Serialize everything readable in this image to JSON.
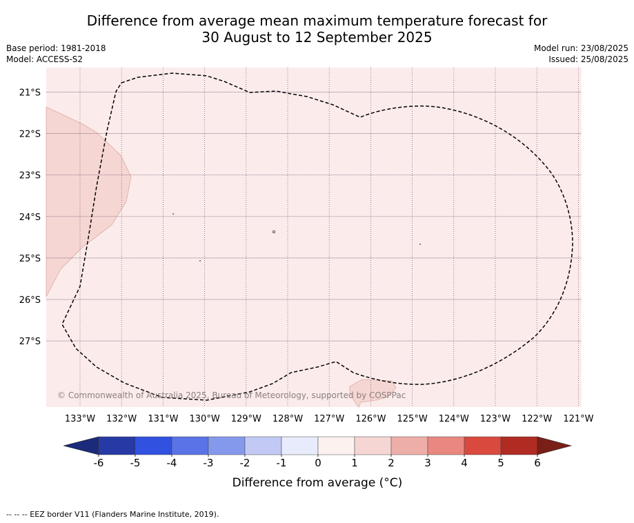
{
  "title": {
    "line1": "Difference from average mean maximum temperature forecast for",
    "line2": "30 August to 12 September 2025"
  },
  "meta": {
    "base_period": "Base period: 1981-2018",
    "model": "Model: ACCESS-S2",
    "model_run": "Model run: 23/08/2025",
    "issued": "Issued: 25/08/2025"
  },
  "map": {
    "lat_labels": [
      "21°S",
      "22°S",
      "23°S",
      "24°S",
      "25°S",
      "26°S",
      "27°S"
    ],
    "lon_labels": [
      "133°W",
      "132°W",
      "131°W",
      "130°W",
      "129°W",
      "128°W",
      "127°W",
      "126°W",
      "125°W",
      "124°W",
      "123°W",
      "122°W",
      "121°W"
    ],
    "background_category": "0 to 1",
    "watermark": "© Commonwealth of Australia 2025, Bureau of Meteorology, supported by COSPPac",
    "colors": {
      "background_fill": "#fbeceb",
      "warm_patch_fill": "#f5d6d3",
      "grid": "#6a4a6a"
    }
  },
  "colorbar": {
    "title": "Difference from average (°C)",
    "tick_labels": [
      "-6",
      "-5",
      "-4",
      "-3",
      "-2",
      "-1",
      "0",
      "1",
      "2",
      "3",
      "4",
      "5",
      "6"
    ],
    "colors": [
      "#2639a4",
      "#3151e0",
      "#5a73e6",
      "#8599ec",
      "#c2c9f5",
      "#e8ebfb",
      "#fdf1ef",
      "#f5d6d3",
      "#eeaea8",
      "#e88880",
      "#d9493e",
      "#b02b22"
    ],
    "under_color": "#1b2a7a",
    "over_color": "#7a1f18"
  },
  "footnote": "--  --  -- EEZ border V11 (Flanders Marine Institute, 2019)."
}
